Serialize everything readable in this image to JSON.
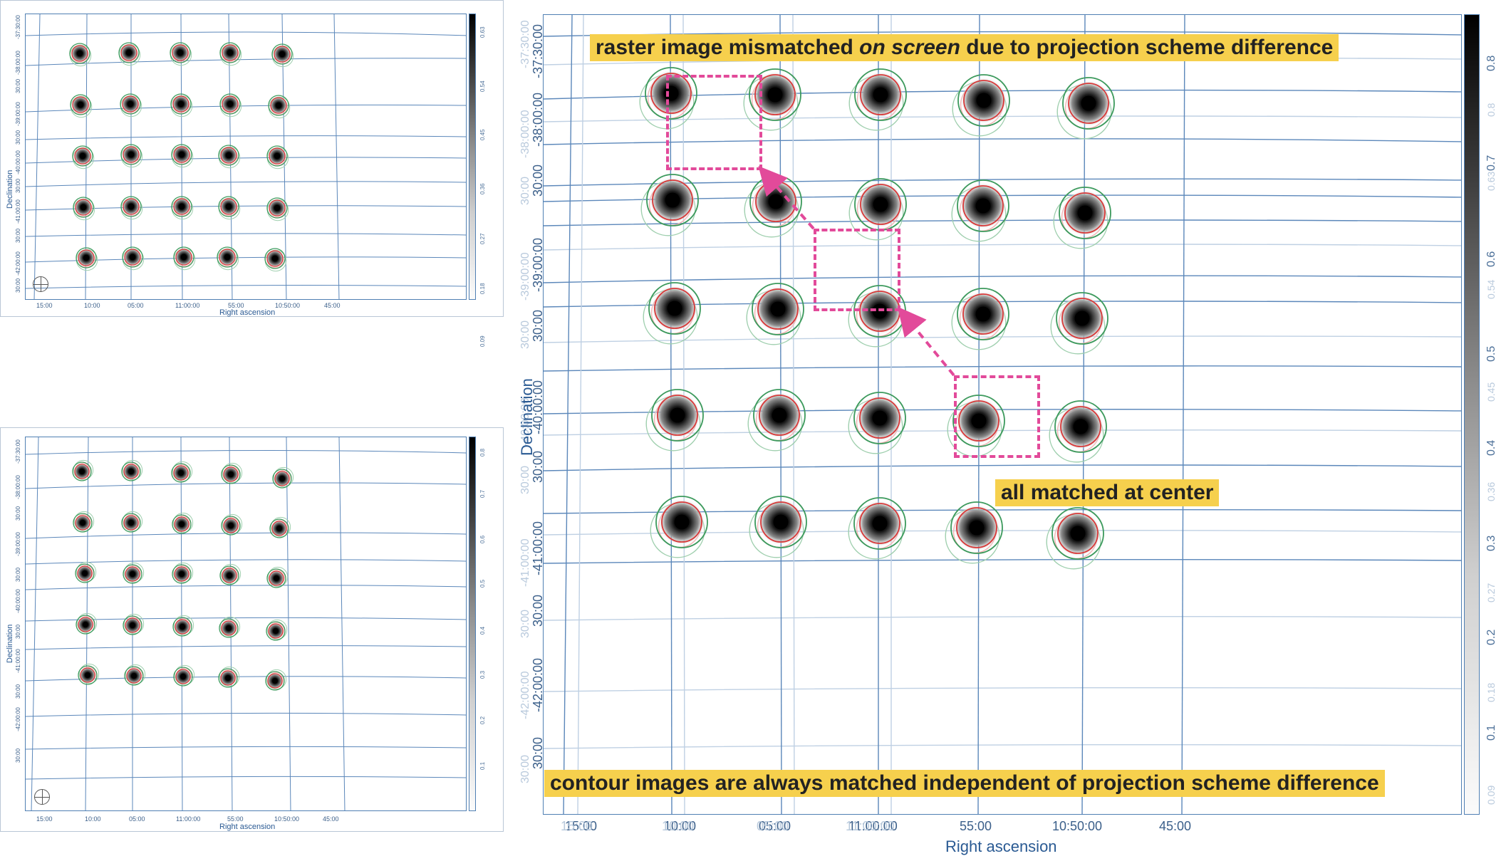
{
  "panels": {
    "top_left": {
      "ra_ticks": [
        "15:00",
        "10:00",
        "05:00",
        "11:00:00",
        "55:00",
        "10:50:00",
        "45:00"
      ],
      "dec_ticks": [
        "-37:30:00",
        "-38:00:00",
        "30:00",
        "-39:00:00",
        "30:00",
        "-40:00:00",
        "30:00",
        "-41:00:00",
        "30:00",
        "-42:00:00",
        "30:00"
      ],
      "xlabel": "Right ascension",
      "ylabel": "Declination",
      "colorbar_ticks": [
        "0.63",
        "0.54",
        "0.45",
        "0.36",
        "0.27",
        "0.18",
        "0.09"
      ]
    },
    "bottom_left": {
      "ra_ticks": [
        "15:00",
        "10:00",
        "05:00",
        "11:00:00",
        "55:00",
        "10:50:00",
        "45:00"
      ],
      "dec_ticks": [
        "-37:30:00",
        "-38:00:00",
        "30:00",
        "-39:00:00",
        "30:00",
        "-40:00:00",
        "30:00",
        "-41:00:00",
        "30:00",
        "-42:00:00",
        "30:00"
      ],
      "xlabel": "Right ascension",
      "ylabel": "Declination",
      "colorbar_ticks": [
        "0.8",
        "0.7",
        "0.6",
        "0.5",
        "0.4",
        "0.3",
        "0.2",
        "0.1"
      ]
    },
    "main": {
      "ra_ticks": [
        "15:00",
        "10:00",
        "05:00",
        "11:00:00",
        "55:00",
        "10:50:00",
        "45:00"
      ],
      "ra_ticks_ghost": [
        "15:00",
        "10:00",
        "05:00",
        "11:00:00"
      ],
      "dec_ticks": [
        "-37:30:00",
        "-38:00:00",
        "30:00",
        "-39:00:00",
        "30:00",
        "-40:00:00",
        "30:00",
        "-41:00:00",
        "30:00",
        "-42:00:00",
        "30:00"
      ],
      "dec_ticks_ghost": [
        "-37:30:00",
        "-38:00:00",
        "30:00",
        "-39:00:00",
        "30:00",
        "-40:00:00",
        "30:00",
        "-41:00:00",
        "30:00",
        "-42:00:00",
        "30:00"
      ],
      "xlabel": "Right ascension",
      "ylabel": "Declination",
      "colorbar_ticks": [
        "0.8",
        "0.7",
        "0.6",
        "0.5",
        "0.4",
        "0.3",
        "0.2",
        "0.1"
      ],
      "colorbar_ticks_ghost": [
        "0.8",
        "0.63",
        "0.54",
        "0.45",
        "0.36",
        "0.27",
        "0.18",
        "0.09"
      ]
    }
  },
  "callouts": {
    "top_pre": "raster image mismatched ",
    "top_em": "on screen",
    "top_post": " due to projection scheme difference",
    "middle": "all matched at center",
    "bottom": "contour images are always matched independent of projection scheme difference"
  },
  "colors": {
    "highlight": "#e24a9a",
    "callout_bg": "#f6d04d",
    "grid": "#4f7fb3",
    "contour_red": "#d83a3a",
    "contour_green": "#3d9a5d"
  }
}
